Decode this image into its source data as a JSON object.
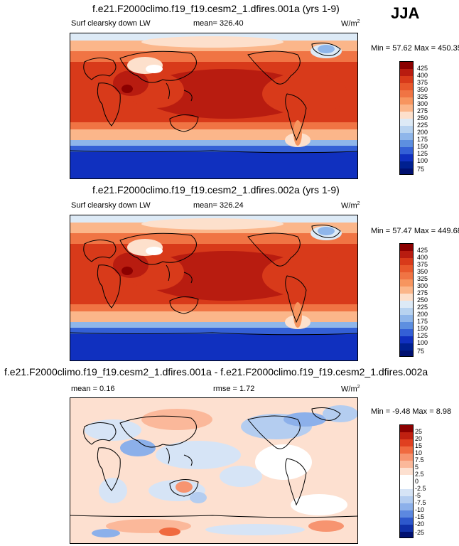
{
  "season": "JJA",
  "panels": [
    {
      "title": "f.e21.F2000climo.f19_f19.cesm2_1.dfires.001a (yrs 1-9)",
      "variable": "Surf clearsky down LW",
      "stat": "mean= 326.40",
      "units": "W/m",
      "units_sup": "2",
      "minmax": "Min =  57.62 Max = 450.35",
      "colorbar": [
        "425",
        "400",
        "375",
        "350",
        "325",
        "300",
        "275",
        "250",
        "225",
        "200",
        "175",
        "150",
        "125",
        "100",
        "75"
      ]
    },
    {
      "title": "f.e21.F2000climo.f19_f19.cesm2_1.dfires.002a (yrs 1-9)",
      "variable": "Surf clearsky down LW",
      "stat": "mean= 326.24",
      "units": "W/m",
      "units_sup": "2",
      "minmax": "Min =  57.47 Max = 449.68",
      "colorbar": [
        "425",
        "400",
        "375",
        "350",
        "325",
        "300",
        "275",
        "250",
        "225",
        "200",
        "175",
        "150",
        "125",
        "100",
        "75"
      ]
    },
    {
      "title": "f.e21.F2000climo.f19_f19.cesm2_1.dfires.001a - f.e21.F2000climo.f19_f19.cesm2_1.dfires.002a",
      "mean": "mean =   0.16",
      "rmse": "rmse =   1.72",
      "units": "W/m",
      "units_sup": "2",
      "minmax": "Min =  -9.48 Max =   8.98",
      "colorbar": [
        "25",
        "20",
        "15",
        "10",
        "7.5",
        "5",
        "2.5",
        "0",
        "-2.5",
        "-5",
        "-7.5",
        "-10",
        "-15",
        "-20",
        "-25"
      ]
    }
  ],
  "colors": {
    "abs_scale": [
      "#8b0000",
      "#b81c10",
      "#d83a1a",
      "#e8582c",
      "#f07444",
      "#f7955f",
      "#fbb68a",
      "#fde0cc",
      "#ddeaf6",
      "#b8d3f0",
      "#8fb6ea",
      "#5d8fe0",
      "#3460d6",
      "#1030bf",
      "#002090",
      "#001070"
    ],
    "diff_scale": [
      "#8b0000",
      "#c02010",
      "#e04020",
      "#f06a40",
      "#f79470",
      "#fbb89a",
      "#fde0d0",
      "#ffffff",
      "#ffffff",
      "#d6e4f6",
      "#b4cdf0",
      "#8cb0ea",
      "#5c88e0",
      "#2e58cc",
      "#1030a8",
      "#001070"
    ]
  }
}
